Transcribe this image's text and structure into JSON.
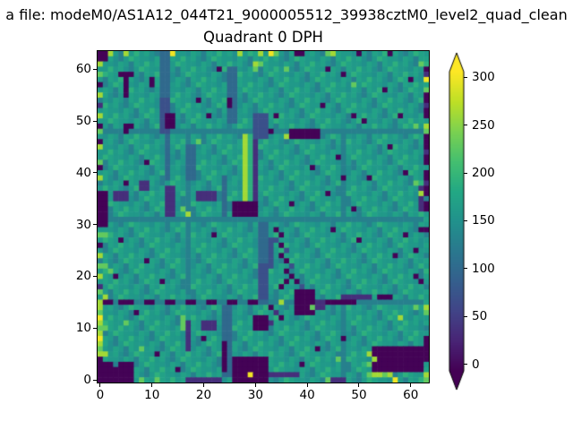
{
  "suptitle": "a file: modeM0/AS1A12_044T21_9000005512_39938cztM0_level2_quad_clean",
  "title": "Quadrant 0 DPH",
  "colors": {
    "figure_background": "#ffffff",
    "text": "#000000",
    "spine": "#000000",
    "colormap_min": "#440154",
    "colormap_max": "#fde725"
  },
  "chart_data": {
    "type": "heatmap",
    "title": "Quadrant 0 DPH",
    "grid_size": [
      64,
      64
    ],
    "x_ticks": [
      0,
      10,
      20,
      30,
      40,
      50,
      60
    ],
    "y_ticks": [
      0,
      10,
      20,
      30,
      40,
      50,
      60
    ],
    "colormap": "viridis",
    "value_range": [
      -7,
      306
    ],
    "colorbar_ticks": [
      0,
      50,
      100,
      150,
      200,
      250,
      300
    ],
    "colorbar_extend": "both",
    "viridis_stops": [
      [
        0,
        "#440154"
      ],
      [
        0.1,
        "#482475"
      ],
      [
        0.2,
        "#414487"
      ],
      [
        0.3,
        "#355f8d"
      ],
      [
        0.4,
        "#2a788e"
      ],
      [
        0.5,
        "#21918c"
      ],
      [
        0.6,
        "#22a884"
      ],
      [
        0.7,
        "#44bf70"
      ],
      [
        0.8,
        "#7ad151"
      ],
      [
        0.9,
        "#bddf26"
      ],
      [
        1,
        "#fde725"
      ]
    ],
    "char_values": {
      "P": -5,
      "p": 35,
      "B": 70,
      "D": 100,
      "d": 128,
      "a": 148,
      "b": 160,
      "c": 172,
      "e": 192,
      "g": 230,
      "G": 262,
      "Y": 300
    },
    "base_pattern": "bacbdcbebcadbecb",
    "row_shift": 7,
    "rows_order": "top-to-bottom",
    "features": [
      {
        "c0": 0,
        "c1": 63,
        "r0": 15,
        "r1": 15,
        "ch": "d"
      },
      {
        "c0": 0,
        "c1": 63,
        "r0": 32,
        "r1": 32,
        "ch": "d"
      },
      {
        "c0": 0,
        "c1": 63,
        "r0": 48,
        "r1": 48,
        "ch": "d"
      },
      {
        "c0": 17,
        "c1": 17,
        "r0": 16,
        "r1": 31,
        "ch": "d"
      },
      {
        "c0": 47,
        "c1": 47,
        "r0": 16,
        "r1": 31,
        "ch": "d"
      },
      {
        "c0": 47,
        "c1": 47,
        "r0": 49,
        "r1": 62,
        "ch": "d"
      },
      {
        "c0": 0,
        "c1": 1,
        "r0": 0,
        "r1": 1,
        "ch": "P"
      },
      {
        "c0": 4,
        "c1": 6,
        "r0": 4,
        "r1": 4,
        "ch": "P"
      },
      {
        "c0": 5,
        "c1": 5,
        "r0": 5,
        "r1": 8,
        "ch": "P"
      },
      {
        "c0": 12,
        "c1": 13,
        "r0": 0,
        "r1": 8,
        "ch": "D"
      },
      {
        "c0": 12,
        "c1": 13,
        "r0": 9,
        "r1": 15,
        "ch": "B"
      },
      {
        "c0": 13,
        "c1": 14,
        "r0": 12,
        "r1": 14,
        "ch": "P"
      },
      {
        "c0": 13,
        "c1": 13,
        "r0": 16,
        "r1": 24,
        "ch": "D"
      },
      {
        "c0": 25,
        "c1": 26,
        "r0": 3,
        "r1": 13,
        "ch": "D"
      },
      {
        "c0": 25,
        "c1": 25,
        "r0": 9,
        "r1": 10,
        "ch": "P"
      },
      {
        "c0": 30,
        "c1": 32,
        "r0": 12,
        "r1": 16,
        "ch": "B"
      },
      {
        "c0": 37,
        "c1": 42,
        "r0": 15,
        "r1": 16,
        "ch": "P"
      },
      {
        "c0": 33,
        "c1": 33,
        "r0": 15,
        "r1": 15,
        "ch": "P"
      },
      {
        "c0": 28,
        "c1": 28,
        "r0": 16,
        "r1": 30,
        "ch": "G"
      },
      {
        "c0": 29,
        "c1": 29,
        "r0": 17,
        "r1": 28,
        "ch": "e"
      },
      {
        "c0": 30,
        "c1": 30,
        "r0": 17,
        "r1": 31,
        "ch": "p"
      },
      {
        "c0": 26,
        "c1": 30,
        "r0": 29,
        "r1": 31,
        "ch": "P"
      },
      {
        "c0": 24,
        "c1": 24,
        "r0": 24,
        "r1": 31,
        "ch": "D"
      },
      {
        "c0": 0,
        "c1": 1,
        "r0": 27,
        "r1": 33,
        "ch": "P"
      },
      {
        "c0": 13,
        "c1": 14,
        "r0": 26,
        "r1": 31,
        "ch": "p"
      },
      {
        "c0": 19,
        "c1": 22,
        "r0": 27,
        "r1": 28,
        "ch": "p"
      },
      {
        "c0": 8,
        "c1": 9,
        "r0": 25,
        "r1": 26,
        "ch": "p"
      },
      {
        "c0": 3,
        "c1": 5,
        "r0": 27,
        "r1": 28,
        "ch": "p"
      },
      {
        "c0": 17,
        "c1": 18,
        "r0": 18,
        "r1": 24,
        "ch": "D"
      },
      {
        "c0": 17,
        "c1": 17,
        "r0": 33,
        "r1": 46,
        "ch": "d"
      },
      {
        "c0": 16,
        "c1": 16,
        "r0": 51,
        "r1": 53,
        "ch": "g"
      },
      {
        "c0": 17,
        "c1": 17,
        "r0": 52,
        "r1": 57,
        "ch": "p"
      },
      {
        "c0": 31,
        "c1": 32,
        "r0": 33,
        "r1": 48,
        "ch": "D"
      },
      {
        "c0": 31,
        "c1": 32,
        "r0": 41,
        "r1": 47,
        "ch": "B"
      },
      {
        "c0": 33,
        "c1": 33,
        "r0": 36,
        "r1": 41,
        "ch": "B"
      },
      {
        "c0": 30,
        "c1": 32,
        "r0": 51,
        "r1": 53,
        "ch": "P"
      },
      {
        "c0": 24,
        "c1": 25,
        "r0": 49,
        "r1": 62,
        "ch": "D"
      },
      {
        "c0": 24,
        "c1": 24,
        "r0": 56,
        "r1": 61,
        "ch": "P"
      },
      {
        "c0": 38,
        "c1": 41,
        "r0": 46,
        "r1": 50,
        "ch": "P"
      },
      {
        "c0": 42,
        "c1": 43,
        "r0": 48,
        "r1": 49,
        "ch": "p"
      },
      {
        "c0": 44,
        "c1": 49,
        "r0": 48,
        "r1": 48,
        "ch": "P"
      },
      {
        "c0": 47,
        "c1": 52,
        "r0": 47,
        "r1": 47,
        "ch": "p"
      },
      {
        "c0": 54,
        "c1": 56,
        "r0": 47,
        "r1": 47,
        "ch": "P"
      },
      {
        "c0": 1,
        "c1": 2,
        "r0": 48,
        "r1": 48,
        "ch": "P"
      },
      {
        "c0": 4,
        "c1": 6,
        "r0": 48,
        "r1": 48,
        "ch": "P"
      },
      {
        "c0": 9,
        "c1": 10,
        "r0": 48,
        "r1": 48,
        "ch": "P"
      },
      {
        "c0": 13,
        "c1": 14,
        "r0": 48,
        "r1": 48,
        "ch": "P"
      },
      {
        "c0": 17,
        "c1": 18,
        "r0": 48,
        "r1": 48,
        "ch": "P"
      },
      {
        "c0": 21,
        "c1": 22,
        "r0": 48,
        "r1": 48,
        "ch": "P"
      },
      {
        "c0": 25,
        "c1": 26,
        "r0": 48,
        "r1": 48,
        "ch": "P"
      },
      {
        "c0": 29,
        "c1": 30,
        "r0": 48,
        "r1": 48,
        "ch": "P"
      },
      {
        "c0": 20,
        "c1": 22,
        "r0": 52,
        "r1": 53,
        "ch": "p"
      },
      {
        "c0": 26,
        "c1": 32,
        "r0": 59,
        "r1": 63,
        "ch": "P"
      },
      {
        "c0": 0,
        "c1": 6,
        "r0": 60,
        "r1": 63,
        "ch": "P"
      },
      {
        "c0": 53,
        "c1": 62,
        "r0": 57,
        "r1": 61,
        "ch": "P"
      },
      {
        "c0": 62,
        "c1": 62,
        "r0": 26,
        "r1": 30,
        "ch": "p"
      },
      {
        "c0": 17,
        "c1": 23,
        "r0": 63,
        "r1": 63,
        "ch": "p"
      },
      {
        "c0": 45,
        "c1": 47,
        "r0": 63,
        "r1": 63,
        "ch": "p"
      },
      {
        "c0": 33,
        "c1": 38,
        "r0": 62,
        "r1": 62,
        "ch": "p"
      },
      {
        "c0": 38,
        "c1": 39,
        "r0": 0,
        "r1": 0,
        "ch": "P"
      }
    ],
    "cells": [
      [
        31,
        0,
        "G"
      ],
      [
        33,
        0,
        "Y"
      ],
      [
        34,
        0,
        "g"
      ],
      [
        5,
        0,
        "G"
      ],
      [
        14,
        0,
        "Y"
      ],
      [
        27,
        0,
        "G"
      ],
      [
        44,
        0,
        "g"
      ],
      [
        45,
        0,
        "G"
      ],
      [
        2,
        0,
        "G"
      ],
      [
        30,
        2,
        "G"
      ],
      [
        31,
        2,
        "g"
      ],
      [
        30,
        3,
        "g"
      ],
      [
        36,
        3,
        "g"
      ],
      [
        49,
        6,
        "g"
      ],
      [
        19,
        17,
        "g"
      ],
      [
        36,
        16,
        "G"
      ],
      [
        1,
        35,
        "g"
      ],
      [
        1,
        41,
        "g"
      ],
      [
        1,
        47,
        "G"
      ],
      [
        1,
        53,
        "g"
      ],
      [
        1,
        58,
        "G"
      ],
      [
        2,
        42,
        "g"
      ],
      [
        5,
        52,
        "g"
      ],
      [
        8,
        57,
        "g"
      ],
      [
        16,
        30,
        "g"
      ],
      [
        17,
        31,
        "G"
      ],
      [
        61,
        25,
        "g"
      ],
      [
        62,
        27,
        "G"
      ],
      [
        58,
        51,
        "G"
      ],
      [
        61,
        49,
        "g"
      ],
      [
        46,
        59,
        "g"
      ],
      [
        62,
        2,
        "g"
      ],
      [
        61,
        14,
        "g"
      ],
      [
        52,
        58,
        "G"
      ],
      [
        53,
        59,
        "G"
      ],
      [
        52,
        60,
        "g"
      ],
      [
        52,
        62,
        "g"
      ],
      [
        53,
        62,
        "G"
      ],
      [
        54,
        62,
        "G"
      ],
      [
        55,
        62,
        "g"
      ],
      [
        56,
        62,
        "G"
      ],
      [
        57,
        63,
        "Y"
      ],
      [
        29,
        62,
        "Y"
      ],
      [
        44,
        63,
        "g"
      ],
      [
        8,
        63,
        "g"
      ],
      [
        11,
        63,
        "g"
      ],
      [
        35,
        48,
        "G"
      ],
      [
        41,
        49,
        "g"
      ],
      [
        3,
        60,
        "d"
      ],
      [
        50,
        0,
        "P"
      ],
      [
        56,
        0,
        "P"
      ],
      [
        10,
        5,
        "P"
      ],
      [
        10,
        6,
        "P"
      ],
      [
        44,
        3,
        "P"
      ],
      [
        47,
        4,
        "P"
      ],
      [
        55,
        7,
        "P"
      ],
      [
        43,
        10,
        "P"
      ],
      [
        34,
        12,
        "P"
      ],
      [
        49,
        12,
        "P"
      ],
      [
        51,
        13,
        "P"
      ],
      [
        46,
        20,
        "P"
      ],
      [
        41,
        22,
        "P"
      ],
      [
        52,
        24,
        "P"
      ],
      [
        47,
        24,
        "P"
      ],
      [
        44,
        27,
        "P"
      ],
      [
        37,
        29,
        "P"
      ],
      [
        49,
        30,
        "P"
      ],
      [
        56,
        18,
        "P"
      ],
      [
        59,
        23,
        "P"
      ],
      [
        60,
        5,
        "P"
      ],
      [
        58,
        12,
        "P"
      ],
      [
        5,
        14,
        "P"
      ],
      [
        6,
        14,
        "P"
      ],
      [
        5,
        15,
        "P"
      ],
      [
        23,
        3,
        "P"
      ],
      [
        19,
        9,
        "P"
      ],
      [
        21,
        12,
        "P"
      ],
      [
        9,
        21,
        "P"
      ],
      [
        5,
        25,
        "P"
      ],
      [
        22,
        35,
        "P"
      ],
      [
        4,
        36,
        "P"
      ],
      [
        9,
        40,
        "P"
      ],
      [
        3,
        43,
        "P"
      ],
      [
        12,
        44,
        "P"
      ],
      [
        7,
        50,
        "P"
      ],
      [
        20,
        55,
        "P"
      ],
      [
        11,
        58,
        "P"
      ],
      [
        15,
        61,
        "P"
      ],
      [
        45,
        34,
        "P"
      ],
      [
        50,
        36,
        "P"
      ],
      [
        57,
        39,
        "P"
      ],
      [
        61,
        43,
        "P"
      ],
      [
        47,
        55,
        "P"
      ],
      [
        42,
        57,
        "P"
      ],
      [
        39,
        60,
        "P"
      ],
      [
        59,
        35,
        "P"
      ],
      [
        62,
        34,
        "P"
      ],
      [
        61,
        38,
        "P"
      ],
      [
        62,
        44,
        "P"
      ],
      [
        34,
        34,
        "P"
      ],
      [
        35,
        35,
        "P"
      ],
      [
        34,
        36,
        "B"
      ],
      [
        35,
        37,
        "P"
      ],
      [
        36,
        38,
        "B"
      ],
      [
        35,
        39,
        "P"
      ],
      [
        36,
        40,
        "P"
      ],
      [
        37,
        41,
        "B"
      ],
      [
        36,
        42,
        "P"
      ],
      [
        37,
        43,
        "P"
      ],
      [
        38,
        44,
        "P"
      ],
      [
        39,
        45,
        "B"
      ],
      [
        36,
        44,
        "P"
      ],
      [
        35,
        45,
        "P"
      ],
      [
        33,
        49,
        "P"
      ],
      [
        34,
        50,
        "p"
      ],
      [
        35,
        51,
        "P"
      ],
      [
        33,
        52,
        "p"
      ]
    ],
    "columns_override": {
      "0": "PPGbgbPbGdpbGbPgbPGbbgPbGdbPPPPPPPbgbPbGdgbGbpgbGGgYGgGYGgGPPPPP",
      "63": "bcePpYcgPPpPPbGgPPPpPPbPPpPPdPPbcbPdbcbdcbecbdcbcGgbcdbPPPPPbcGg"
    }
  }
}
